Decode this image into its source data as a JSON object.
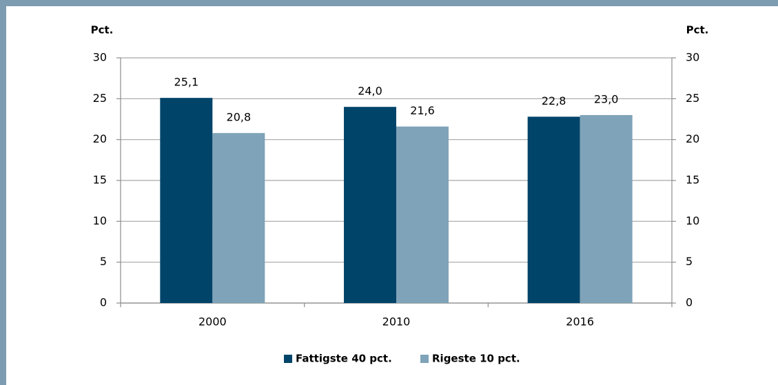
{
  "chart_data": {
    "type": "bar",
    "y_label": "Pct.",
    "y2_label": "Pct.",
    "categories": [
      "2000",
      "2010",
      "2016"
    ],
    "series": [
      {
        "name": "Fattigste 40 pct.",
        "color": "#00446a",
        "values": [
          25.1,
          24.0,
          22.8
        ],
        "value_labels": [
          "25,1",
          "24,0",
          "22,8"
        ]
      },
      {
        "name": "Rigeste 10 pct.",
        "color": "#7fa3b8",
        "values": [
          20.8,
          21.6,
          23.0
        ],
        "value_labels": [
          "20,8",
          "21,6",
          "23,0"
        ]
      }
    ],
    "ylim": [
      0,
      30
    ],
    "yticks": [
      0,
      5,
      10,
      15,
      20,
      25,
      30
    ],
    "y2lim": [
      0,
      30
    ],
    "y2ticks": [
      0,
      5,
      10,
      15,
      20,
      25,
      30
    ],
    "grid": true,
    "legend": "bottom"
  }
}
